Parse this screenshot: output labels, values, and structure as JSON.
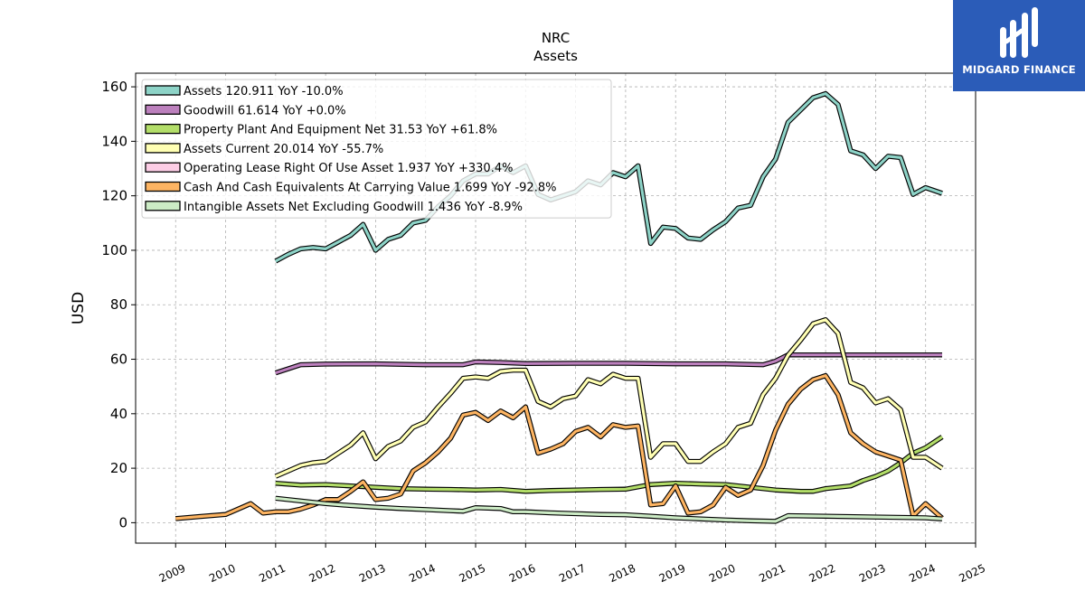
{
  "chart_data": {
    "type": "line",
    "title": "NRC",
    "subtitle": "Assets",
    "ylabel": "USD",
    "xlabel": "",
    "xlim": [
      2008.2,
      2025.0
    ],
    "ylim": [
      -7.5,
      165
    ],
    "x_ticks": [
      "2009",
      "2010",
      "2011",
      "2012",
      "2013",
      "2014",
      "2015",
      "2016",
      "2017",
      "2018",
      "2019",
      "2020",
      "2021",
      "2022",
      "2023",
      "2024",
      "2025"
    ],
    "y_ticks": [
      "0",
      "20",
      "40",
      "60",
      "80",
      "100",
      "120",
      "140",
      "160"
    ],
    "grid": true,
    "legend_position": "top-left",
    "series": [
      {
        "name": "Assets  120.911 YoY -10.0%",
        "color": "#8dd3c7",
        "points": [
          [
            2011.0,
            96
          ],
          [
            2011.25,
            98.5
          ],
          [
            2011.5,
            100.5
          ],
          [
            2011.75,
            101
          ],
          [
            2012.0,
            100.5
          ],
          [
            2012.25,
            103
          ],
          [
            2012.5,
            105.5
          ],
          [
            2012.75,
            109.5
          ],
          [
            2013.0,
            100
          ],
          [
            2013.25,
            104
          ],
          [
            2013.5,
            105.5
          ],
          [
            2013.75,
            110
          ],
          [
            2014.0,
            111
          ],
          [
            2014.25,
            116
          ],
          [
            2014.5,
            120
          ],
          [
            2014.75,
            125.5
          ],
          [
            2015.0,
            128
          ],
          [
            2015.25,
            128
          ],
          [
            2015.5,
            131
          ],
          [
            2015.75,
            128.5
          ],
          [
            2016.0,
            131
          ],
          [
            2016.25,
            120.5
          ],
          [
            2016.5,
            118.5
          ],
          [
            2016.75,
            120
          ],
          [
            2017.0,
            121.5
          ],
          [
            2017.25,
            125.5
          ],
          [
            2017.5,
            124
          ],
          [
            2017.75,
            128.5
          ],
          [
            2018.0,
            127
          ],
          [
            2018.25,
            131
          ],
          [
            2018.5,
            102.5
          ],
          [
            2018.75,
            108.5
          ],
          [
            2019.0,
            108
          ],
          [
            2019.25,
            104.5
          ],
          [
            2019.5,
            104
          ],
          [
            2019.75,
            107.5
          ],
          [
            2020.0,
            110.5
          ],
          [
            2020.25,
            115.5
          ],
          [
            2020.5,
            116.5
          ],
          [
            2020.75,
            127
          ],
          [
            2021.0,
            133.5
          ],
          [
            2021.25,
            147
          ],
          [
            2021.5,
            151.5
          ],
          [
            2021.75,
            156
          ],
          [
            2022.0,
            157.5
          ],
          [
            2022.25,
            153.5
          ],
          [
            2022.5,
            136.5
          ],
          [
            2022.75,
            135
          ],
          [
            2023.0,
            130
          ],
          [
            2023.25,
            134.5
          ],
          [
            2023.5,
            134
          ],
          [
            2023.75,
            120.5
          ],
          [
            2024.0,
            123
          ],
          [
            2024.33,
            120.9
          ]
        ]
      },
      {
        "name": "Goodwill  61.614 YoY +0.0%",
        "color": "#bc80bd",
        "points": [
          [
            2011.0,
            55
          ],
          [
            2011.5,
            58
          ],
          [
            2012.0,
            58.2
          ],
          [
            2013.0,
            58.3
          ],
          [
            2014.0,
            58
          ],
          [
            2014.75,
            58
          ],
          [
            2015.0,
            59
          ],
          [
            2015.5,
            58.8
          ],
          [
            2016.0,
            58.4
          ],
          [
            2017.0,
            58.5
          ],
          [
            2018.0,
            58.5
          ],
          [
            2019.0,
            58.3
          ],
          [
            2020.0,
            58.3
          ],
          [
            2020.75,
            58
          ],
          [
            2021.0,
            59.3
          ],
          [
            2021.25,
            61.6
          ],
          [
            2022.0,
            61.6
          ],
          [
            2023.0,
            61.6
          ],
          [
            2024.0,
            61.6
          ],
          [
            2024.33,
            61.6
          ]
        ]
      },
      {
        "name": "Property Plant And Equipment Net  31.53 YoY +61.8%",
        "color": "#b3de69",
        "points": [
          [
            2011.0,
            14.5
          ],
          [
            2011.5,
            13.8
          ],
          [
            2012.0,
            14
          ],
          [
            2012.5,
            13.5
          ],
          [
            2013.0,
            13
          ],
          [
            2013.5,
            12.5
          ],
          [
            2014.0,
            12.3
          ],
          [
            2014.5,
            12.2
          ],
          [
            2015.0,
            12
          ],
          [
            2015.5,
            12.2
          ],
          [
            2016.0,
            11.5
          ],
          [
            2016.5,
            11.8
          ],
          [
            2017.0,
            12
          ],
          [
            2017.5,
            12.2
          ],
          [
            2018.0,
            12.3
          ],
          [
            2018.5,
            14
          ],
          [
            2019.0,
            14.5
          ],
          [
            2019.5,
            14.2
          ],
          [
            2020.0,
            14
          ],
          [
            2020.5,
            13
          ],
          [
            2021.0,
            12
          ],
          [
            2021.5,
            11.5
          ],
          [
            2021.75,
            11.5
          ],
          [
            2022.0,
            12.5
          ],
          [
            2022.5,
            13.5
          ],
          [
            2022.75,
            15.5
          ],
          [
            2023.0,
            17
          ],
          [
            2023.25,
            19
          ],
          [
            2023.5,
            22
          ],
          [
            2023.75,
            25.5
          ],
          [
            2024.0,
            27.5
          ],
          [
            2024.33,
            31.5
          ]
        ]
      },
      {
        "name": "Assets Current  20.014 YoY -55.7%",
        "color": "#ffffb3",
        "points": [
          [
            2011.0,
            17
          ],
          [
            2011.25,
            19
          ],
          [
            2011.5,
            21
          ],
          [
            2011.75,
            22
          ],
          [
            2012.0,
            22.5
          ],
          [
            2012.25,
            25.5
          ],
          [
            2012.5,
            28.5
          ],
          [
            2012.75,
            33
          ],
          [
            2013.0,
            23.5
          ],
          [
            2013.25,
            28
          ],
          [
            2013.5,
            30
          ],
          [
            2013.75,
            35
          ],
          [
            2014.0,
            37
          ],
          [
            2014.25,
            42.5
          ],
          [
            2014.5,
            47.5
          ],
          [
            2014.75,
            53
          ],
          [
            2015.0,
            53.5
          ],
          [
            2015.25,
            53
          ],
          [
            2015.5,
            55.5
          ],
          [
            2015.75,
            56
          ],
          [
            2016.0,
            56
          ],
          [
            2016.25,
            44.5
          ],
          [
            2016.5,
            42.5
          ],
          [
            2016.75,
            45.5
          ],
          [
            2017.0,
            46.5
          ],
          [
            2017.25,
            52.5
          ],
          [
            2017.5,
            51
          ],
          [
            2017.75,
            54.5
          ],
          [
            2018.0,
            53
          ],
          [
            2018.25,
            53
          ],
          [
            2018.5,
            24
          ],
          [
            2018.75,
            29
          ],
          [
            2019.0,
            29
          ],
          [
            2019.25,
            22.5
          ],
          [
            2019.5,
            22.5
          ],
          [
            2019.75,
            26
          ],
          [
            2020.0,
            29
          ],
          [
            2020.25,
            35
          ],
          [
            2020.5,
            36.5
          ],
          [
            2020.75,
            47
          ],
          [
            2021.0,
            53
          ],
          [
            2021.25,
            61.5
          ],
          [
            2021.5,
            67
          ],
          [
            2021.75,
            73
          ],
          [
            2022.0,
            74.5
          ],
          [
            2022.25,
            69.5
          ],
          [
            2022.5,
            51.5
          ],
          [
            2022.75,
            49.5
          ],
          [
            2023.0,
            44
          ],
          [
            2023.25,
            45.5
          ],
          [
            2023.5,
            41.5
          ],
          [
            2023.75,
            24
          ],
          [
            2024.0,
            24
          ],
          [
            2024.33,
            20
          ]
        ]
      },
      {
        "name": "Operating Lease Right Of Use Asset  1.937 YoY +330.4%",
        "color": "#fccde5",
        "points": []
      },
      {
        "name": "Cash And Cash Equivalents At Carrying Value  1.699 YoY -92.8%",
        "color": "#fdb462",
        "points": [
          [
            2009.0,
            1.5
          ],
          [
            2009.5,
            2.3
          ],
          [
            2010.0,
            3
          ],
          [
            2010.5,
            7
          ],
          [
            2010.75,
            3.5
          ],
          [
            2011.0,
            4
          ],
          [
            2011.25,
            4
          ],
          [
            2011.5,
            5
          ],
          [
            2011.75,
            6.5
          ],
          [
            2012.0,
            8.5
          ],
          [
            2012.25,
            8.5
          ],
          [
            2012.5,
            11.5
          ],
          [
            2012.75,
            15
          ],
          [
            2013.0,
            8.5
          ],
          [
            2013.25,
            9
          ],
          [
            2013.5,
            10.5
          ],
          [
            2013.75,
            19
          ],
          [
            2014.0,
            22
          ],
          [
            2014.25,
            26
          ],
          [
            2014.5,
            31
          ],
          [
            2014.75,
            39.5
          ],
          [
            2015.0,
            40.5
          ],
          [
            2015.25,
            37.5
          ],
          [
            2015.5,
            41
          ],
          [
            2015.75,
            38.5
          ],
          [
            2016.0,
            42.5
          ],
          [
            2016.25,
            25.5
          ],
          [
            2016.5,
            27
          ],
          [
            2016.75,
            29
          ],
          [
            2017.0,
            33.5
          ],
          [
            2017.25,
            35
          ],
          [
            2017.5,
            31.5
          ],
          [
            2017.75,
            36
          ],
          [
            2018.0,
            35
          ],
          [
            2018.25,
            35.5
          ],
          [
            2018.5,
            6.5
          ],
          [
            2018.75,
            7
          ],
          [
            2019.0,
            13.5
          ],
          [
            2019.25,
            3.5
          ],
          [
            2019.5,
            4
          ],
          [
            2019.75,
            6.5
          ],
          [
            2020.0,
            13
          ],
          [
            2020.25,
            10
          ],
          [
            2020.5,
            12
          ],
          [
            2020.75,
            21
          ],
          [
            2021.0,
            34
          ],
          [
            2021.25,
            43.5
          ],
          [
            2021.5,
            49
          ],
          [
            2021.75,
            52.5
          ],
          [
            2022.0,
            54
          ],
          [
            2022.25,
            47
          ],
          [
            2022.5,
            33
          ],
          [
            2022.75,
            29
          ],
          [
            2023.0,
            26
          ],
          [
            2023.25,
            24.5
          ],
          [
            2023.5,
            23
          ],
          [
            2023.75,
            2.5
          ],
          [
            2024.0,
            7
          ],
          [
            2024.33,
            1.7
          ]
        ]
      },
      {
        "name": "Intangible Assets Net Excluding Goodwill  1.436 YoY -8.9%",
        "color": "#ccebc5",
        "points": [
          [
            2011.0,
            9
          ],
          [
            2011.5,
            8
          ],
          [
            2012.0,
            7
          ],
          [
            2012.5,
            6.3
          ],
          [
            2013.0,
            5.7
          ],
          [
            2013.5,
            5.2
          ],
          [
            2014.0,
            4.8
          ],
          [
            2014.5,
            4.4
          ],
          [
            2014.75,
            4.2
          ],
          [
            2015.0,
            5.5
          ],
          [
            2015.5,
            5.2
          ],
          [
            2015.75,
            4
          ],
          [
            2016.0,
            4
          ],
          [
            2016.5,
            3.6
          ],
          [
            2017.0,
            3.3
          ],
          [
            2017.5,
            3
          ],
          [
            2018.0,
            2.9
          ],
          [
            2018.5,
            2.4
          ],
          [
            2019.0,
            1.8
          ],
          [
            2019.5,
            1.4
          ],
          [
            2020.0,
            1
          ],
          [
            2020.5,
            0.7
          ],
          [
            2021.0,
            0.5
          ],
          [
            2021.25,
            2.6
          ],
          [
            2022.0,
            2.4
          ],
          [
            2023.0,
            2.1
          ],
          [
            2024.0,
            1.8
          ],
          [
            2024.33,
            1.4
          ]
        ]
      }
    ]
  },
  "logo": {
    "text": "MIDGARD FINANCE",
    "color": "#2b5cb8"
  }
}
